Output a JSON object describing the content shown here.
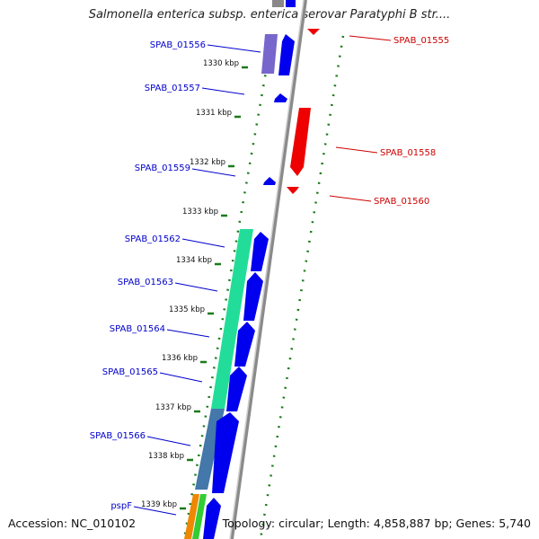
{
  "title": "Salmonella enterica subsp. enterica serovar Paratyphi B str....",
  "accession": "Accession: NC_010102",
  "summary": "Topology: circular; Length: 4,858,887 bp; Genes: 5,740",
  "colors": {
    "forward_gene": "#0000ee",
    "reverse_gene": "#ee0000",
    "label_blue": "#0000cc",
    "label_red": "#cc0000",
    "tick": "#1a7a1a",
    "backbone": "#999999",
    "cog_purple": "#7766cc",
    "cog_teal": "#22dd99",
    "cog_steel": "#4477aa",
    "cog_orange": "#ee8800",
    "cog_green": "#33cc33"
  },
  "ticks": [
    "1330 kbp",
    "1331 kbp",
    "1332 kbp",
    "1333 kbp",
    "1334 kbp",
    "1335 kbp",
    "1336 kbp",
    "1337 kbp",
    "1338 kbp",
    "1339 kbp"
  ],
  "labels": {
    "left": [
      "SPAB_01556",
      "SPAB_01557",
      "SPAB_01559",
      "SPAB_01562",
      "SPAB_01563",
      "SPAB_01564",
      "SPAB_01565",
      "SPAB_01566",
      "pspF"
    ],
    "right": [
      "SPAB_01555",
      "SPAB_01558",
      "SPAB_01560"
    ]
  }
}
